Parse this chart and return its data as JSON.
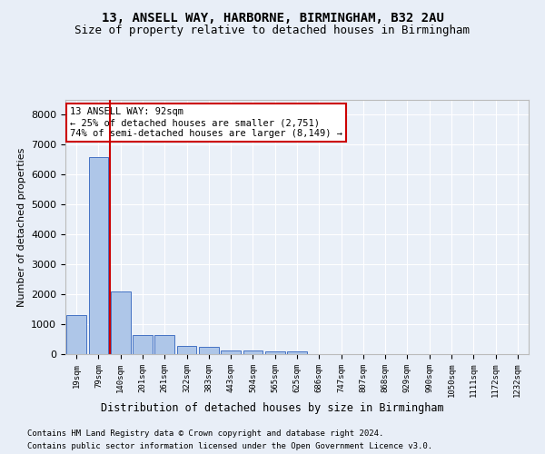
{
  "title1": "13, ANSELL WAY, HARBORNE, BIRMINGHAM, B32 2AU",
  "title2": "Size of property relative to detached houses in Birmingham",
  "xlabel": "Distribution of detached houses by size in Birmingham",
  "ylabel": "Number of detached properties",
  "footnote1": "Contains HM Land Registry data © Crown copyright and database right 2024.",
  "footnote2": "Contains public sector information licensed under the Open Government Licence v3.0.",
  "annotation_line1": "13 ANSELL WAY: 92sqm",
  "annotation_line2": "← 25% of detached houses are smaller (2,751)",
  "annotation_line3": "74% of semi-detached houses are larger (8,149) →",
  "bar_labels": [
    "19sqm",
    "79sqm",
    "140sqm",
    "201sqm",
    "261sqm",
    "322sqm",
    "383sqm",
    "443sqm",
    "504sqm",
    "565sqm",
    "625sqm",
    "686sqm",
    "747sqm",
    "807sqm",
    "868sqm",
    "929sqm",
    "990sqm",
    "1050sqm",
    "1111sqm",
    "1172sqm",
    "1232sqm"
  ],
  "bar_values": [
    1300,
    6600,
    2080,
    650,
    640,
    260,
    240,
    130,
    110,
    80,
    80,
    0,
    0,
    0,
    0,
    0,
    0,
    0,
    0,
    0,
    0
  ],
  "bar_color": "#aec6e8",
  "bar_edge_color": "#4472c4",
  "property_line_x": 1.5,
  "ylim": [
    0,
    8500
  ],
  "yticks": [
    0,
    1000,
    2000,
    3000,
    4000,
    5000,
    6000,
    7000,
    8000
  ],
  "bg_color": "#e8eef7",
  "plot_bg_color": "#eaf0f8",
  "grid_color": "#ffffff",
  "red_line_color": "#cc0000",
  "annotation_box_color": "#ffffff",
  "annotation_border_color": "#cc0000",
  "title1_fontsize": 10,
  "title2_fontsize": 9
}
